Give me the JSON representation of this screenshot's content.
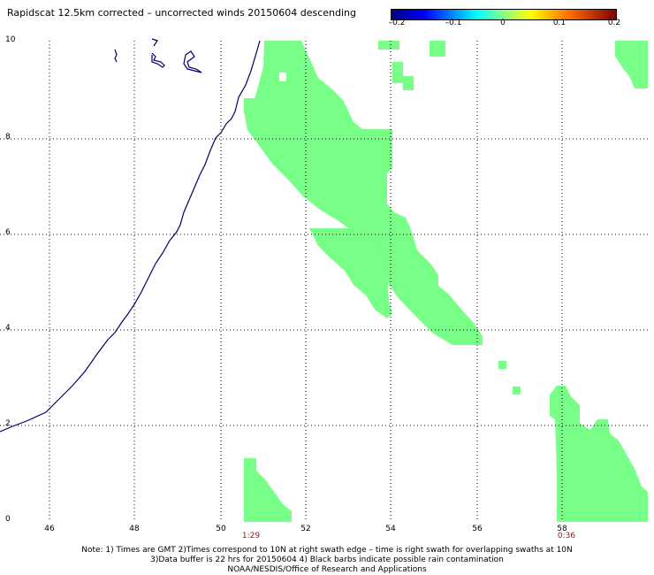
{
  "header": {
    "title": "Rapidscat 12.5km corrected – uncorrected winds 20150604 descending"
  },
  "colorbar": {
    "labels": [
      "–0.2",
      "–0.1",
      "0",
      "0.1",
      "0.2"
    ],
    "values": [
      -0.2,
      -0.1,
      0,
      0.1,
      0.2
    ],
    "colors": [
      "#00007f",
      "#0000ff",
      "#00ffff",
      "#ffff00",
      "#ff6600",
      "#7f0000"
    ]
  },
  "axes": {
    "y_ticks": [
      "10",
      "8",
      "6",
      "4",
      "2",
      "0"
    ],
    "x_ticks": [
      "46",
      "48",
      "50",
      "52",
      "54",
      "56",
      "58"
    ]
  },
  "times": {
    "left": "1:29",
    "right": "0:36"
  },
  "notes": {
    "line1": "Note: 1) Times are GMT 2)Times correspond to 10N at right swath edge – time is right swath for overlapping swaths at 10N",
    "line2": "3)Data buffer is 22 hrs for 20150604 4) Black barbs indicate possible rain contamination",
    "line3": "NOAA/NESDIS/Office of Research and Applications"
  },
  "colors": {
    "wind_diff": "#77ff88",
    "coast": "#000066",
    "grid": "#000000",
    "time_label": "#8b1a1a"
  }
}
